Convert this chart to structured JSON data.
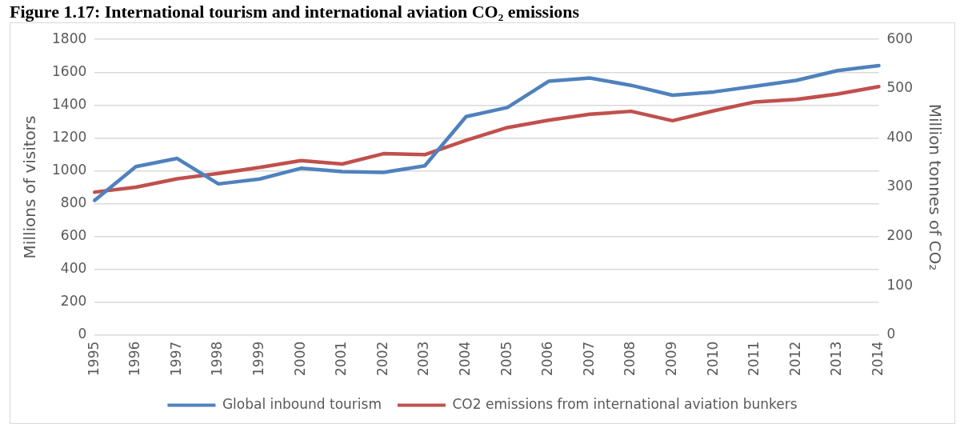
{
  "chart_data": {
    "type": "line",
    "title": "Figure 1.17: International tourism and international aviation CO₂ emissions",
    "ylabel": "Millions of visitors",
    "y2label": "Million tonnes of CO₂",
    "categories": [
      "1995",
      "1996",
      "1997",
      "1998",
      "1999",
      "2000",
      "2001",
      "2002",
      "2003",
      "2004",
      "2005",
      "2006",
      "2007",
      "2008",
      "2009",
      "2010",
      "2011",
      "2012",
      "2013",
      "2014"
    ],
    "series": [
      {
        "name": "Global inbound tourism",
        "color": "#4f81bd",
        "values": [
          820,
          1025,
          1075,
          920,
          950,
          1015,
          995,
          990,
          1030,
          1330,
          1385,
          1545,
          1565,
          1520,
          1460,
          1480,
          1515,
          1550,
          1610,
          1640
        ]
      },
      {
        "name": "CO2 emissions from international aviation bunkers",
        "color": "#c0504d",
        "axis": "y2",
        "values": [
          290,
          300,
          317,
          328,
          340,
          354,
          347,
          368,
          366,
          395,
          421,
          436,
          448,
          454,
          435,
          455,
          473,
          478,
          489,
          504
        ]
      }
    ],
    "ylim": [
      0,
      1800
    ],
    "yticks": [
      0,
      200,
      400,
      600,
      800,
      1000,
      1200,
      1400,
      1600,
      1800
    ],
    "y2lim": [
      0,
      600
    ],
    "y2ticks": [
      0,
      100,
      200,
      300,
      400,
      500,
      600
    ],
    "grid": "y",
    "legend": "bottom",
    "marker": "none",
    "line_style": "solid"
  }
}
